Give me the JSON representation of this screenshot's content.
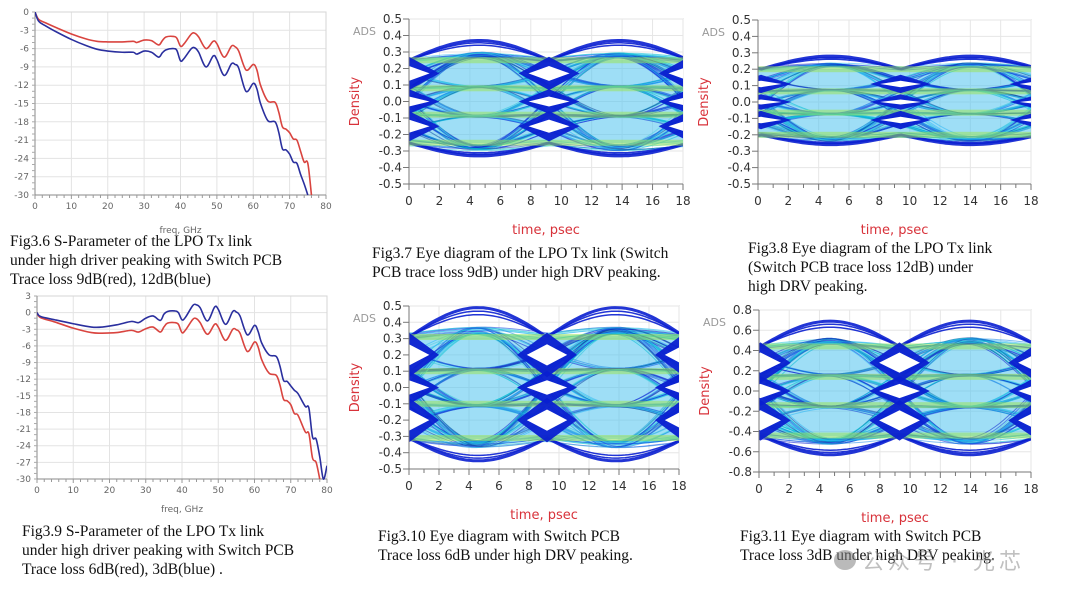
{
  "figures": {
    "fig36": {
      "caption": "Fig3.6 S-Parameter of the LPO Tx link\nunder high driver peaking with Switch PCB\nTrace loss 9dB(red), 12dB(blue)"
    },
    "fig37": {
      "caption": "Fig3.7 Eye diagram of the LPO Tx link (Switch\nPCB trace loss 9dB) under high DRV peaking."
    },
    "fig38": {
      "caption": "Fig3.8 Eye diagram of the LPO Tx link\n(Switch PCB trace loss 12dB) under\nhigh DRV peaking."
    },
    "fig39": {
      "caption": "Fig3.9 S-Parameter of the LPO Tx link\nunder high driver peaking with Switch PCB\nTrace loss 6dB(red), 3dB(blue) ."
    },
    "fig310": {
      "caption": "Fig3.10 Eye diagram with Switch PCB\nTrace loss 6dB under high DRV peaking."
    },
    "fig311": {
      "caption": "Fig3.11 Eye diagram with Switch PCB\nTrace loss 3dB under high DRV peaking."
    }
  },
  "watermark": "公众号 · 光芯",
  "colors": {
    "red": "#d9443f",
    "blue": "#2a2f9e",
    "eye_dark": "#0a1fd0",
    "axis_red": "#d8323a"
  },
  "chart_data": [
    {
      "id": "fig36",
      "type": "line",
      "title": "Fig3.6 S-Parameter of the LPO Tx link",
      "xlabel": "freq, GHz",
      "ylabel": "",
      "xlim": [
        0,
        80
      ],
      "ylim": [
        -30,
        0
      ],
      "xticks": [
        0,
        10,
        20,
        30,
        40,
        50,
        60,
        70,
        80
      ],
      "yticks": [
        0,
        -3,
        -6,
        -9,
        -12,
        -15,
        -18,
        -21,
        -24,
        -27,
        -30
      ],
      "grid": true,
      "series": [
        {
          "name": "9dB (red)",
          "color": "#d9443f",
          "x": [
            0,
            1,
            3,
            6,
            10,
            14,
            17,
            20,
            24,
            27,
            28,
            30,
            32,
            34,
            35,
            36,
            38,
            39,
            40,
            41,
            43,
            44,
            45,
            47,
            49,
            50,
            52,
            54,
            55,
            56,
            58,
            60,
            61,
            62,
            64,
            66,
            67,
            68,
            69,
            70,
            71,
            72,
            73,
            74,
            75,
            76
          ],
          "y": [
            0,
            -1.2,
            -1.8,
            -2.6,
            -3.6,
            -4.4,
            -4.8,
            -4.9,
            -4.9,
            -4.8,
            -5.0,
            -4.6,
            -4.7,
            -5.4,
            -4.7,
            -4.1,
            -4.0,
            -4.3,
            -5.6,
            -5.2,
            -3.6,
            -3.5,
            -4.1,
            -6.0,
            -4.8,
            -5.2,
            -7.4,
            -5.6,
            -5.7,
            -6.4,
            -9.5,
            -8.6,
            -9.5,
            -12.0,
            -14.6,
            -14.8,
            -16.4,
            -18.8,
            -19.2,
            -19.8,
            -20.8,
            -21.0,
            -22.8,
            -24.6,
            -24.8,
            -30
          ]
        },
        {
          "name": "12dB (blue)",
          "color": "#2a2f9e",
          "x": [
            0,
            1,
            3,
            6,
            10,
            14,
            17,
            20,
            24,
            27,
            28,
            30,
            32,
            34,
            35,
            36,
            38,
            39,
            40,
            41,
            43,
            44,
            45,
            47,
            49,
            50,
            52,
            54,
            55,
            56,
            58,
            60,
            61,
            62,
            64,
            66,
            67,
            68,
            69,
            70,
            71,
            72,
            73,
            74,
            75
          ],
          "y": [
            0,
            -1.5,
            -2.3,
            -3.3,
            -4.5,
            -5.5,
            -6.1,
            -6.4,
            -6.6,
            -6.6,
            -6.9,
            -6.4,
            -6.6,
            -7.4,
            -6.7,
            -6.2,
            -6.0,
            -6.3,
            -8.0,
            -7.6,
            -6.0,
            -5.9,
            -6.6,
            -9.0,
            -7.2,
            -7.8,
            -10.4,
            -8.5,
            -8.6,
            -9.2,
            -13.0,
            -11.7,
            -12.6,
            -15.0,
            -17.8,
            -18.0,
            -19.7,
            -22.4,
            -22.6,
            -23.3,
            -24.6,
            -24.8,
            -26.6,
            -28.2,
            -30
          ]
        }
      ]
    },
    {
      "id": "fig39",
      "type": "line",
      "title": "Fig3.9 S-Parameter of the LPO Tx link",
      "xlabel": "freq, GHz",
      "ylabel": "",
      "xlim": [
        0,
        80
      ],
      "ylim": [
        -30,
        3
      ],
      "xticks": [
        0,
        10,
        20,
        30,
        40,
        50,
        60,
        70,
        80
      ],
      "yticks": [
        3,
        0,
        -3,
        -6,
        -9,
        -12,
        -15,
        -18,
        -21,
        -24,
        -27,
        -30
      ],
      "grid": true,
      "series": [
        {
          "name": "6dB (red)",
          "color": "#d9443f",
          "x": [
            0,
            1,
            5,
            10,
            15,
            18,
            22,
            26,
            28,
            30,
            32,
            34,
            35,
            36,
            38,
            39,
            40,
            41,
            43,
            44,
            45,
            47,
            49,
            50,
            52,
            54,
            55,
            56,
            58,
            60,
            61,
            62,
            64,
            66,
            67,
            68,
            69,
            70,
            71,
            72,
            74,
            75,
            76,
            77,
            78
          ],
          "y": [
            0,
            -0.9,
            -1.7,
            -2.8,
            -3.6,
            -3.7,
            -3.6,
            -3.2,
            -3.5,
            -2.9,
            -2.6,
            -3.5,
            -2.6,
            -1.9,
            -1.8,
            -2.1,
            -3.6,
            -3.1,
            -1.2,
            -1.1,
            -1.8,
            -3.9,
            -2.1,
            -2.6,
            -5.0,
            -3.0,
            -3.1,
            -3.7,
            -7.0,
            -5.3,
            -6.2,
            -8.5,
            -10.9,
            -11.3,
            -13.0,
            -15.6,
            -15.9,
            -16.6,
            -18.2,
            -18.5,
            -21.5,
            -21.8,
            -26.2,
            -27.0,
            -30
          ]
        },
        {
          "name": "3dB (blue)",
          "color": "#2a2f9e",
          "x": [
            0,
            1,
            5,
            10,
            15,
            18,
            22,
            26,
            28,
            30,
            32,
            34,
            35,
            36,
            38,
            39,
            40,
            41,
            43,
            44,
            45,
            47,
            49,
            50,
            52,
            54,
            55,
            56,
            58,
            60,
            61,
            62,
            64,
            66,
            67,
            68,
            69,
            70,
            71,
            72,
            74,
            75,
            76,
            77,
            78,
            79,
            80
          ],
          "y": [
            0,
            -0.7,
            -1.3,
            -2.0,
            -2.6,
            -2.6,
            -2.2,
            -1.6,
            -1.8,
            -1.0,
            -0.6,
            -1.4,
            -0.3,
            0.2,
            0.3,
            0.0,
            -1.3,
            -0.8,
            1.3,
            1.4,
            0.9,
            -1.5,
            1.0,
            0.6,
            -2.1,
            0.2,
            0.1,
            -0.6,
            -4.0,
            -2.3,
            -3.4,
            -5.5,
            -7.6,
            -7.9,
            -9.6,
            -12.2,
            -12.4,
            -13.2,
            -14.0,
            -14.6,
            -16.9,
            -17.2,
            -22.4,
            -22.8,
            -26.0,
            -30.0,
            -27.6
          ]
        }
      ]
    },
    {
      "id": "fig37",
      "type": "heatmap",
      "subtype": "eye-diagram",
      "xlabel": "time, psec",
      "ylabel": "Density",
      "corner_label": "ADS",
      "xlim": [
        0,
        18
      ],
      "ylim": [
        -0.5,
        0.5
      ],
      "xticks": [
        0,
        2,
        4,
        6,
        8,
        10,
        12,
        14,
        16,
        18
      ],
      "yticks": [
        "0.5",
        "0.4",
        "0.3",
        "0.2",
        "0.1",
        "0.0",
        "-0.1",
        "-0.2",
        "-0.3",
        "-0.4",
        "-0.5"
      ],
      "levels": [
        -0.25,
        -0.08,
        0.08,
        0.25
      ],
      "outer_max": 0.37,
      "outer_min": -0.33,
      "crossing_x": 9.2,
      "eye_openings": [
        {
          "center": 0.17,
          "half_height": 0.045
        },
        {
          "center": 0.0,
          "half_height": 0.03
        },
        {
          "center": -0.15,
          "half_height": 0.04
        }
      ],
      "grid": true
    },
    {
      "id": "fig38",
      "type": "heatmap",
      "subtype": "eye-diagram",
      "xlabel": "time, psec",
      "ylabel": "Density",
      "corner_label": "ADS",
      "xlim": [
        0,
        18
      ],
      "ylim": [
        -0.5,
        0.5
      ],
      "xticks": [
        0,
        2,
        4,
        6,
        8,
        10,
        12,
        14,
        16,
        18
      ],
      "yticks": [
        "0.5",
        "0.4",
        "0.3",
        "0.2",
        "0.1",
        "0.0",
        "-0.1",
        "-0.2",
        "-0.3",
        "-0.4",
        "-0.5"
      ],
      "levels": [
        -0.2,
        -0.065,
        0.065,
        0.2
      ],
      "outer_max": 0.28,
      "outer_min": -0.26,
      "crossing_x": 9.4,
      "eye_openings": [
        {
          "center": 0.11,
          "half_height": 0.02
        },
        {
          "center": 0.0,
          "half_height": 0.015
        },
        {
          "center": -0.11,
          "half_height": 0.02
        }
      ],
      "grid": true
    },
    {
      "id": "fig310",
      "type": "heatmap",
      "subtype": "eye-diagram",
      "xlabel": "time, psec",
      "ylabel": "Density",
      "corner_label": "ADS",
      "xlim": [
        0,
        18
      ],
      "ylim": [
        -0.5,
        0.5
      ],
      "xticks": [
        0,
        2,
        4,
        6,
        8,
        10,
        12,
        14,
        16,
        18
      ],
      "yticks": [
        "0.5",
        "0.4",
        "0.3",
        "0.2",
        "0.1",
        "0.0",
        "-0.1",
        "-0.2",
        "-0.3",
        "-0.4",
        "-0.5"
      ],
      "levels": [
        -0.31,
        -0.1,
        0.1,
        0.31
      ],
      "outer_max": 0.49,
      "outer_min": -0.45,
      "crossing_x": 9.2,
      "eye_openings": [
        {
          "center": 0.2,
          "half_height": 0.065
        },
        {
          "center": 0.0,
          "half_height": 0.045
        },
        {
          "center": -0.2,
          "half_height": 0.065
        }
      ],
      "grid": true
    },
    {
      "id": "fig311",
      "type": "heatmap",
      "subtype": "eye-diagram",
      "xlabel": "time, psec",
      "ylabel": "Density",
      "corner_label": "ADS",
      "xlim": [
        0,
        18
      ],
      "ylim": [
        -0.8,
        0.8
      ],
      "xticks": [
        0,
        2,
        4,
        6,
        8,
        10,
        12,
        14,
        16,
        18
      ],
      "yticks": [
        "0.8",
        "0.6",
        "0.4",
        "0.2",
        "0.0",
        "-0.2",
        "-0.4",
        "-0.6",
        "-0.8"
      ],
      "levels": [
        -0.44,
        -0.14,
        0.14,
        0.44
      ],
      "outer_max": 0.69,
      "outer_min": -0.63,
      "crossing_x": 9.3,
      "eye_openings": [
        {
          "center": 0.28,
          "half_height": 0.1
        },
        {
          "center": 0.0,
          "half_height": 0.07
        },
        {
          "center": -0.29,
          "half_height": 0.1
        }
      ],
      "grid": true
    }
  ]
}
